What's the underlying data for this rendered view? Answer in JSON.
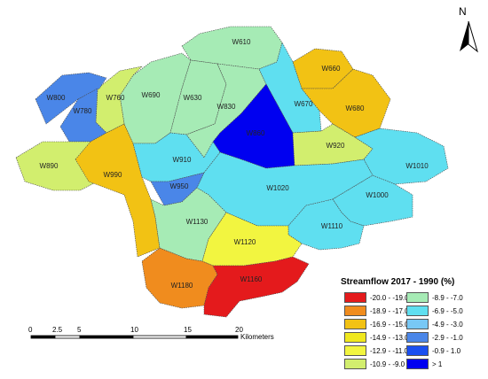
{
  "north": {
    "label": "N",
    "icon": "north-arrow-icon"
  },
  "watersheds": [
    {
      "id": "W610",
      "class": 6
    },
    {
      "id": "W660",
      "class": 2
    },
    {
      "id": "W690",
      "class": 6
    },
    {
      "id": "W630",
      "class": 6
    },
    {
      "id": "W760",
      "class": 5
    },
    {
      "id": "W800",
      "class": 9
    },
    {
      "id": "W780",
      "class": 9
    },
    {
      "id": "W830",
      "class": 6
    },
    {
      "id": "W670",
      "class": 7
    },
    {
      "id": "W680",
      "class": 2
    },
    {
      "id": "W860",
      "class": 11
    },
    {
      "id": "W920",
      "class": 5
    },
    {
      "id": "W890",
      "class": 5
    },
    {
      "id": "W990",
      "class": 2
    },
    {
      "id": "W910",
      "class": 7
    },
    {
      "id": "W1010",
      "class": 7
    },
    {
      "id": "W950",
      "class": 9
    },
    {
      "id": "W1020",
      "class": 7
    },
    {
      "id": "W1000",
      "class": 7
    },
    {
      "id": "W1130",
      "class": 6
    },
    {
      "id": "W1110",
      "class": 7
    },
    {
      "id": "W1120",
      "class": 4
    },
    {
      "id": "W1180",
      "class": 1
    },
    {
      "id": "W1160",
      "class": 0
    }
  ],
  "legend": {
    "title": "Streamflow 2017 - 1990 (%)",
    "classes": [
      {
        "label": "-20.0 - -19.0",
        "color": "#e41a1c"
      },
      {
        "label": "-18.9 - -17.0",
        "color": "#f08c1e"
      },
      {
        "label": "-16.9 - -15.0",
        "color": "#f2c214"
      },
      {
        "label": "-14.9 - -13.0",
        "color": "#f0e81e"
      },
      {
        "label": "-12.9 - -11.0",
        "color": "#f2f540"
      },
      {
        "label": "-10.9 - -9.0",
        "color": "#d2ee6e"
      },
      {
        "label": "-8.9 - -7.0",
        "color": "#a6ebb5"
      },
      {
        "label": "-6.9 - -5.0",
        "color": "#5fdff0"
      },
      {
        "label": "-4.9 - -3.0",
        "color": "#78c8f5"
      },
      {
        "label": "-2.9 - -1.0",
        "color": "#4a86e8"
      },
      {
        "label": "-0.9 - 1.0",
        "color": "#1a4ff0"
      },
      {
        "label": "> 1",
        "color": "#0000f0"
      }
    ]
  },
  "scale_bar": {
    "ticks": [
      "0",
      "2.5",
      "5",
      "10",
      "15",
      "20"
    ],
    "unit": "Kilometers"
  }
}
